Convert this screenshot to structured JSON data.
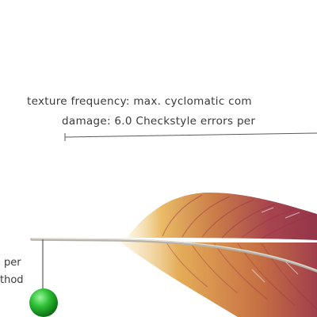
{
  "legend": {
    "texture_line": "texture frequency: max. cyclomatic com",
    "damage_line": "damage: 6.0 Checkstyle errors per"
  },
  "side_label": {
    "line1": "per",
    "line2": "thod"
  },
  "colors": {
    "feather_dark": "#8e2a3f",
    "feather_mid": "#b5484b",
    "feather_light": "#e2b45a",
    "rachis": "#b8b3a8",
    "node": "#1fb52a"
  },
  "icons": {
    "feather": "feather-glyph",
    "node": "green-sphere"
  }
}
